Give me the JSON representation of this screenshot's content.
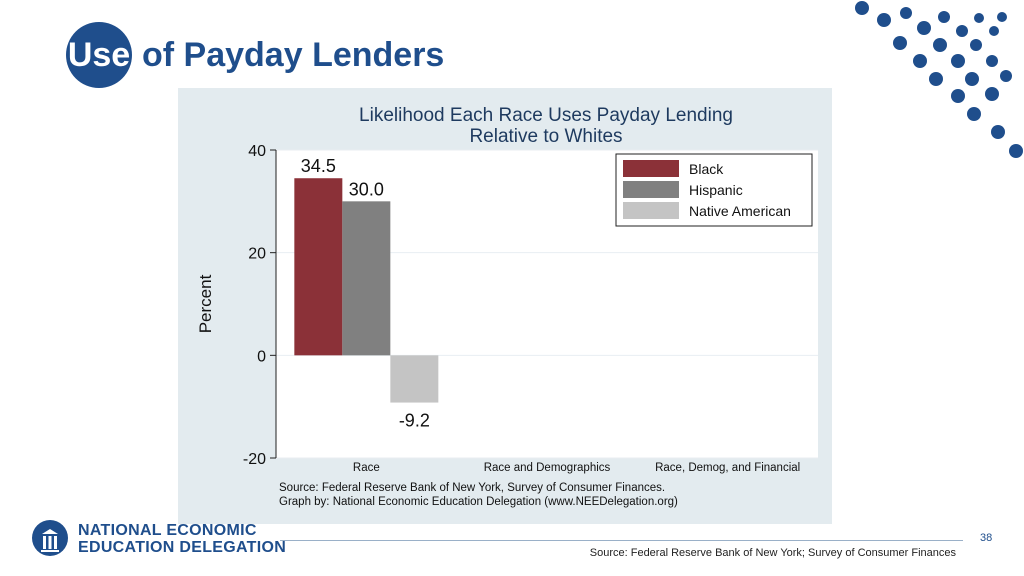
{
  "slide": {
    "title_badge": "Use",
    "title_rest": "of Payday Lenders",
    "page_number": "38",
    "footer_source": "Source: Federal Reserve Bank of New York; Survey of Consumer Finances",
    "org_line1": "NATIONAL ECONOMIC",
    "org_line2": "EDUCATION DELEGATION",
    "accent_color": "#1f4e8c"
  },
  "chart_data": {
    "type": "bar",
    "title": "Likelihood Each Race Uses Payday Lending",
    "subtitle": "Relative to Whites",
    "ylabel": "Percent",
    "xlabel": "",
    "categories": [
      "Race",
      "Race and Demographics",
      "Race, Demog, and Financial"
    ],
    "series": [
      {
        "name": "Black",
        "color": "#8b3138",
        "values": [
          34.5,
          null,
          null
        ],
        "labels": [
          "34.5",
          "",
          ""
        ]
      },
      {
        "name": "Hispanic",
        "color": "#808080",
        "values": [
          30.0,
          null,
          null
        ],
        "labels": [
          "30.0",
          "",
          ""
        ]
      },
      {
        "name": "Native American",
        "color": "#c4c4c4",
        "values": [
          -9.2,
          null,
          null
        ],
        "labels": [
          "-9.2",
          "",
          ""
        ]
      }
    ],
    "ylim": [
      -20,
      40
    ],
    "yticks": [
      -20,
      0,
      20,
      40
    ],
    "ytick_labels": [
      "-20",
      "0",
      "20",
      "40"
    ],
    "grid": true,
    "legend_position": "top-right",
    "source_note": "Source: Federal Reserve Bank of New York, Survey of Consumer Finances.",
    "graph_note": "Graph by: National Economic Education Delegation (www.NEEDelegation.org)"
  }
}
